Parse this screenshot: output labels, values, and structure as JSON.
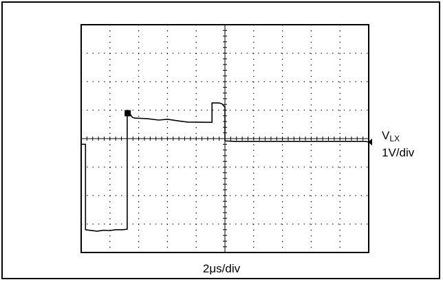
{
  "chart_data": {
    "type": "line",
    "grid": true,
    "divisions": {
      "x": 10,
      "y": 8
    },
    "xlim": [
      0,
      10
    ],
    "ylim": [
      0,
      8
    ],
    "trace_color": "#000000",
    "channel_label": {
      "main": "V",
      "sub": "LX"
    },
    "vertical_scale": "1V/div",
    "time_scale": "2μs/div",
    "series": [
      {
        "x": [
          0,
          0.15,
          0.15,
          0.55,
          0.78,
          1.0,
          1.2,
          1.45,
          1.6,
          1.6,
          1.66,
          1.78,
          1.85,
          2.3,
          2.7,
          3.0,
          3.4,
          3.7,
          4.55,
          4.55,
          4.8,
          4.9,
          5.0,
          5.0,
          5.35,
          6.0,
          7.0,
          8.0,
          9.0,
          9.9,
          10.0
        ],
        "y": [
          3.8,
          3.8,
          0.8,
          0.75,
          0.78,
          0.77,
          0.8,
          0.8,
          0.82,
          4.9,
          4.92,
          4.75,
          4.72,
          4.7,
          4.65,
          4.68,
          4.62,
          4.58,
          4.57,
          5.25,
          5.25,
          5.22,
          5.1,
          3.92,
          3.9,
          3.9,
          3.9,
          3.9,
          3.9,
          3.9,
          3.88
        ]
      }
    ]
  }
}
